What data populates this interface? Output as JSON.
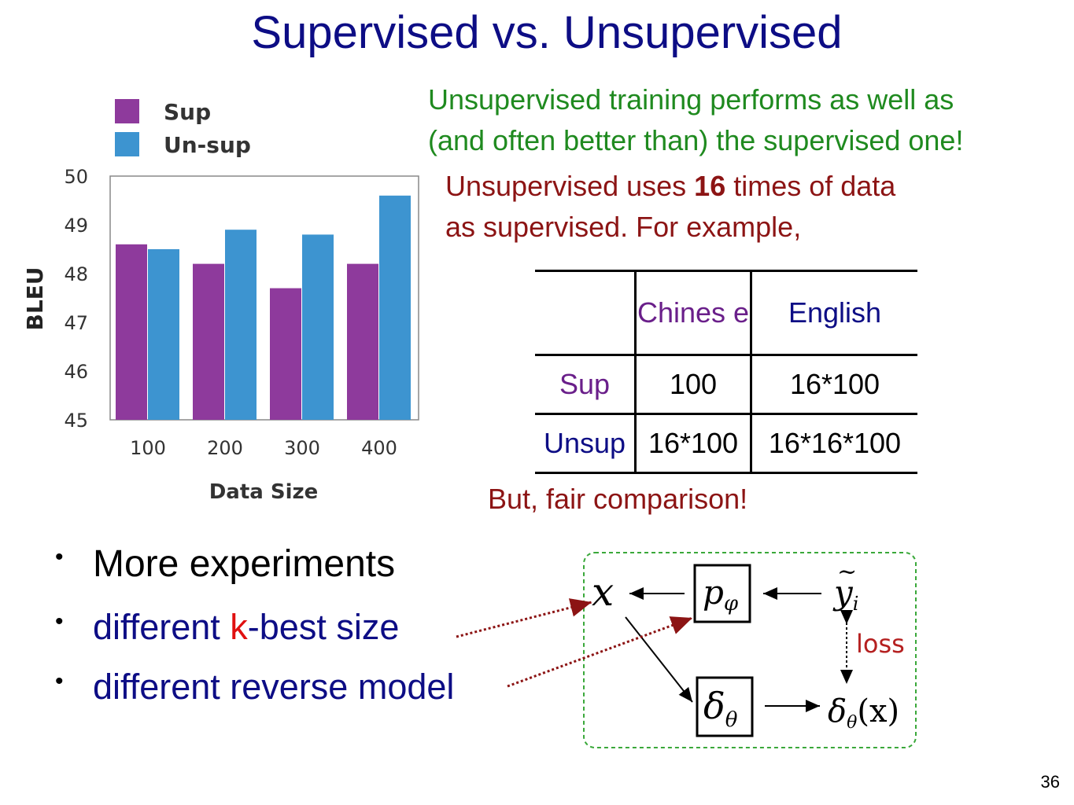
{
  "title": "Supervised vs. Unsupervised",
  "note_green": [
    "Unsupervised training performs as well as",
    "(and often better than) the supervised one!"
  ],
  "note_red_a": "Unsupervised uses ",
  "note_red_bold": "16",
  "note_red_b": " times of data",
  "note_red_line2": "as supervised. For example,",
  "fair": "But, fair comparison!",
  "table": {
    "header": [
      "",
      "Chines e",
      "English"
    ],
    "rows": [
      {
        "label": "Sup",
        "chinese": "100",
        "english": "16*100"
      },
      {
        "label": "Unsup",
        "chinese": "16*100",
        "english": "16*16*100"
      }
    ]
  },
  "bullets": {
    "b1": "More experiments",
    "b2_pre": "different ",
    "b2_k": "k",
    "b2_post": "-best size",
    "b3": "different reverse model"
  },
  "page_number": "36",
  "diagram": {
    "x": "x",
    "p_box": "p",
    "p_sub": "φ",
    "y": "y",
    "y_sub": "i",
    "y_tilde": "~",
    "loss": "loss",
    "d_box": "δ",
    "d_sub": "θ",
    "dx_a": "δ",
    "dx_sub": "θ",
    "dx_b": "(x)"
  },
  "colors": {
    "sup": "#8e3a9c",
    "unsup": "#3d94d0",
    "title": "#0d0d85"
  },
  "chart_data": {
    "type": "bar",
    "categories": [
      "100",
      "200",
      "300",
      "400"
    ],
    "series": [
      {
        "name": "Sup",
        "values": [
          48.6,
          48.2,
          47.7,
          48.2
        ]
      },
      {
        "name": "Un-sup",
        "values": [
          48.5,
          48.9,
          48.8,
          49.6
        ]
      }
    ],
    "xlabel": "Data Size",
    "ylabel": "BLEU",
    "ylim": [
      45,
      50
    ],
    "yticks": [
      "45",
      "46",
      "47",
      "48",
      "49",
      "50"
    ],
    "legend": "top-left"
  }
}
